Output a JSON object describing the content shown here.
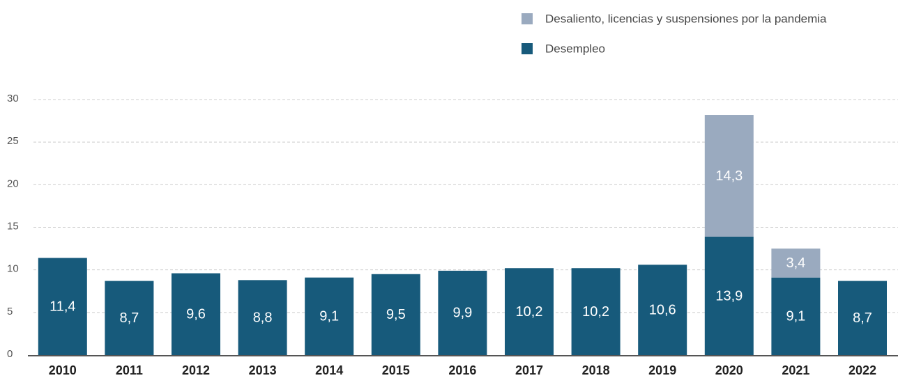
{
  "chart_data": {
    "type": "stacked_bar",
    "categories": [
      "2010",
      "2011",
      "2012",
      "2013",
      "2014",
      "2015",
      "2016",
      "2017",
      "2018",
      "2019",
      "2020",
      "2021",
      "2022"
    ],
    "series": [
      {
        "name": "Desempleo",
        "color": "#175a7b",
        "values": [
          11.4,
          8.7,
          9.6,
          8.8,
          9.1,
          9.5,
          9.9,
          10.2,
          10.2,
          10.6,
          13.9,
          9.1,
          8.7
        ],
        "value_labels": [
          "11,4",
          "8,7",
          "9,6",
          "8,8",
          "9,1",
          "9,5",
          "9,9",
          "10,2",
          "10,2",
          "10,6",
          "13,9",
          "9,1",
          "8,7"
        ]
      },
      {
        "name": "Desaliento, licencias y suspensiones por la pandemia",
        "color": "#9aaabf",
        "values": [
          null,
          null,
          null,
          null,
          null,
          null,
          null,
          null,
          null,
          null,
          14.3,
          3.4,
          null
        ],
        "value_labels": [
          null,
          null,
          null,
          null,
          null,
          null,
          null,
          null,
          null,
          null,
          "14,3",
          "3,4",
          null
        ]
      }
    ],
    "ylim": [
      0,
      30
    ],
    "yticks": [
      0,
      5,
      10,
      15,
      20,
      25,
      30
    ],
    "grid": true,
    "legend": "top-right"
  }
}
